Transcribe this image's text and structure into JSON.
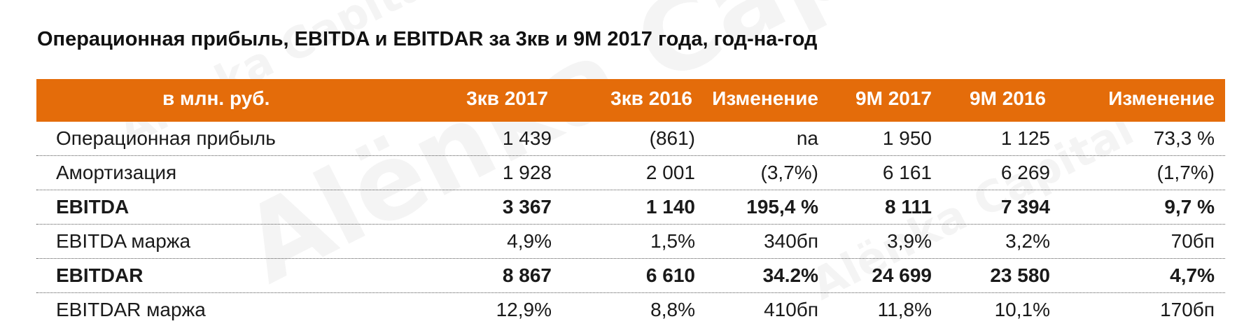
{
  "title": "Операционная прибыль, EBITDA и EBITDAR за 3кв и 9М 2017 года, год-на-год",
  "header": {
    "unit": "в млн. руб.",
    "col1": "3кв 2017",
    "col2": "3кв 2016",
    "col3": "Изменение",
    "col4": "9М 2017",
    "col5": "9М 2016",
    "col6": "Изменение"
  },
  "rows": [
    {
      "label": "Операционная прибыль",
      "c1": "1 439",
      "c2": "(861)",
      "c3": "na",
      "c4": "1 950",
      "c5": "1 125",
      "c6": "73,3 %"
    },
    {
      "label": "Амортизация",
      "c1": "1 928",
      "c2": "2 001",
      "c3": "(3,7%)",
      "c4": "6 161",
      "c5": "6 269",
      "c6": "(1,7%)"
    },
    {
      "label": "EBITDA",
      "c1": "3 367",
      "c2": "1 140",
      "c3": "195,4 %",
      "c4": "8 111",
      "c5": "7 394",
      "c6": "9,7 %"
    },
    {
      "label": "EBITDA маржа",
      "c1": "4,9%",
      "c2": "1,5%",
      "c3": "340бп",
      "c4": "3,9%",
      "c5": "3,2%",
      "c6": "70бп"
    },
    {
      "label": "EBITDAR",
      "c1": "8 867",
      "c2": "6 610",
      "c3": "34.2%",
      "c4": "24 699",
      "c5": "23 580",
      "c6": "4,7%"
    },
    {
      "label": "EBITDAR маржа",
      "c1": "12,9%",
      "c2": "8,8%",
      "c3": "410бп",
      "c4": "11,8%",
      "c5": "10,1%",
      "c6": "170бп"
    }
  ],
  "watermark": "Alënka Capital"
}
